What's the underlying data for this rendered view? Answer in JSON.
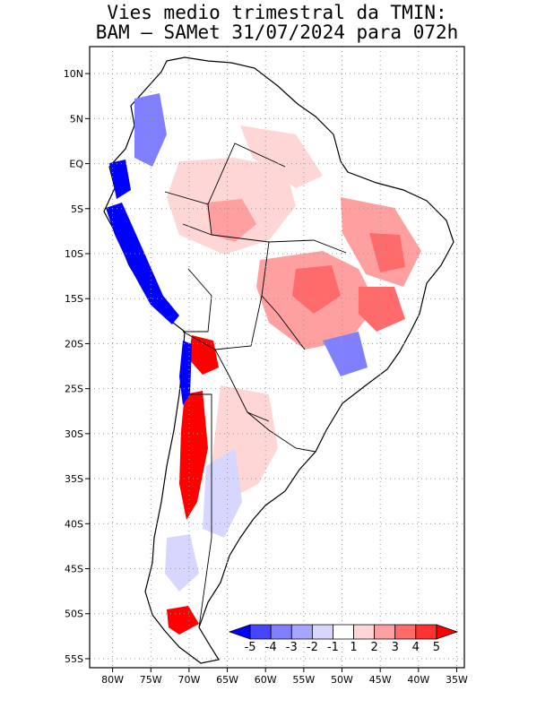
{
  "title_line1": "Vies medio trimestral da TMIN:",
  "title_line2": "BAM – SAMet 31/07/2024  para 072h",
  "map": {
    "lon_range": [
      -83,
      -34
    ],
    "lat_range": [
      -56,
      13
    ],
    "lon_ticks": [
      "80W",
      "75W",
      "70W",
      "65W",
      "60W",
      "55W",
      "50W",
      "45W",
      "40W",
      "35W"
    ],
    "lon_tick_values": [
      -80,
      -75,
      -70,
      -65,
      -60,
      -55,
      -50,
      -45,
      -40,
      -35
    ],
    "lat_ticks": [
      "10N",
      "5N",
      "EQ",
      "5S",
      "10S",
      "15S",
      "20S",
      "25S",
      "30S",
      "35S",
      "40S",
      "45S",
      "50S",
      "55S"
    ],
    "lat_tick_values": [
      10,
      5,
      0,
      -5,
      -10,
      -15,
      -20,
      -25,
      -30,
      -35,
      -40,
      -45,
      -50,
      -55
    ],
    "grid": "dotted"
  },
  "colorbar": {
    "labels": [
      "-5",
      "-4",
      "-3",
      "-2",
      "-1",
      "1",
      "2",
      "3",
      "4",
      "5"
    ],
    "colors": [
      "#0000ff",
      "#4646ff",
      "#8080ff",
      "#a6a6ff",
      "#d6d6ff",
      "#ffffff",
      "#ffd6d6",
      "#ffa0a0",
      "#ff6a6a",
      "#ff3232",
      "#ff0000"
    ],
    "placement": "bottom-right inside map"
  }
}
